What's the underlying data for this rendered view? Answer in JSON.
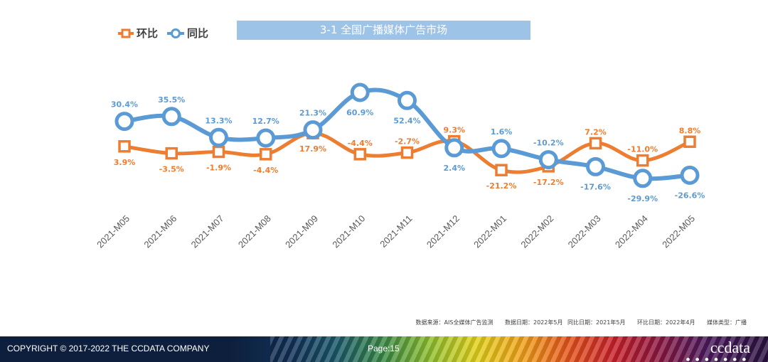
{
  "chart_data": {
    "type": "line",
    "title": "3-1 全国广播媒体广告市场",
    "categories": [
      "2021-M05",
      "2021-M06",
      "2021-M07",
      "2021-M08",
      "2021-M09",
      "2021-M10",
      "2021-M11",
      "2021-M12",
      "2022-M01",
      "2022-M02",
      "2022-M03",
      "2022-M04",
      "2022-M05"
    ],
    "series": [
      {
        "name": "环比",
        "color": "#ed7d31",
        "values": [
          3.9,
          -3.5,
          -1.9,
          -4.4,
          17.9,
          -4.4,
          -2.7,
          9.3,
          -21.2,
          -17.2,
          7.2,
          -11.0,
          8.8
        ],
        "labels": [
          "3.9%",
          "-3.5%",
          "-1.9%",
          "-4.4%",
          "17.9%",
          "-4.4%",
          "-2.7%",
          "9.3%",
          "-21.2%",
          "-17.2%",
          "7.2%",
          "-11.0%",
          "8.8%"
        ]
      },
      {
        "name": "同比",
        "color": "#5b9bd5",
        "values": [
          30.4,
          35.5,
          13.3,
          12.7,
          21.3,
          60.9,
          52.4,
          2.4,
          1.6,
          -10.2,
          -17.6,
          -29.9,
          -26.6
        ],
        "labels": [
          "30.4%",
          "35.5%",
          "13.3%",
          "12.7%",
          "21.3%",
          "60.9%",
          "52.4%",
          "2.4%",
          "1.6%",
          "-10.2%",
          "-17.6%",
          "-29.9%",
          "-26.6%"
        ]
      }
    ],
    "legend": "top-left",
    "grid": false
  },
  "source": {
    "source": "数据来源：AIS全媒体广告监测",
    "data_date": "数据日期：2022年5月",
    "yoy_date": "同比日期：2021年5月",
    "mom_date": "环比日期：2022年4月",
    "media_type": "媒体类型：广播"
  },
  "footer": {
    "copyright": "COPYRIGHT © 2017-2022 THE CCDATA COMPANY",
    "page": "Page:15",
    "logo": "ccdata",
    "dots": "● ● ● ● ● ● ●"
  }
}
